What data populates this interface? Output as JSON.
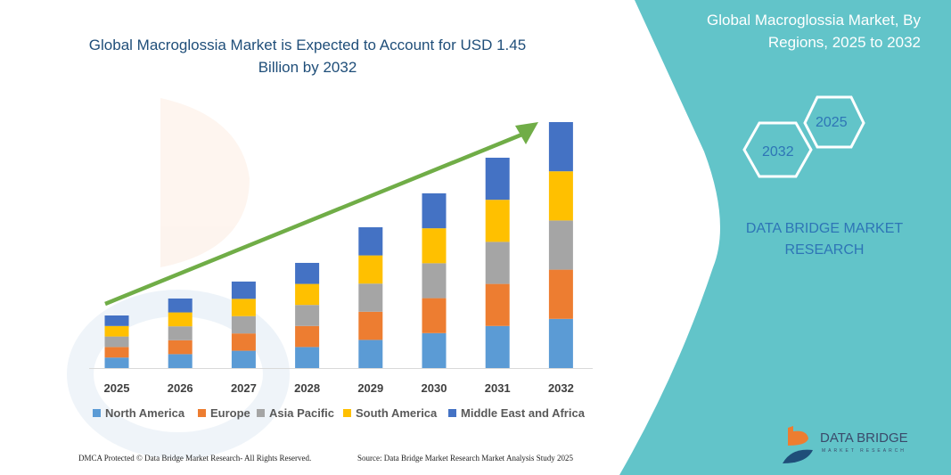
{
  "title": "Global Macroglossia Market is Expected to Account for USD 1.45 Billion by 2032",
  "side_title": "Global Macroglossia Market, By Regions, 2025 to 2032",
  "hex_labels": {
    "front": "2032",
    "back": "2025"
  },
  "brand_text": "DATA BRIDGE MARKET RESEARCH",
  "logo": {
    "name": "DATA BRIDGE",
    "sub": "MARKET RESEARCH"
  },
  "footer": {
    "left": "DMCA Protected © Data Bridge Market Research- All Rights Reserved.",
    "right": "Source: Data Bridge Market Research Market Analysis Study 2025"
  },
  "colors": {
    "panel": "#62c4c9",
    "arrow": "#70ad47"
  },
  "chart_data": {
    "type": "bar",
    "stacked": true,
    "categories": [
      "2025",
      "2026",
      "2027",
      "2028",
      "2029",
      "2030",
      "2031",
      "2032"
    ],
    "ylim": [
      0,
      1.45
    ],
    "grid": false,
    "legend_placement": "bottom",
    "series": [
      {
        "name": "North America",
        "color": "#5b9bd5",
        "values": [
          0.062,
          0.082,
          0.102,
          0.124,
          0.166,
          0.206,
          0.248,
          0.29
        ]
      },
      {
        "name": "Europe",
        "color": "#ed7d31",
        "values": [
          0.062,
          0.082,
          0.102,
          0.124,
          0.166,
          0.206,
          0.248,
          0.29
        ]
      },
      {
        "name": "Asia Pacific",
        "color": "#a5a5a5",
        "values": [
          0.062,
          0.082,
          0.102,
          0.124,
          0.166,
          0.206,
          0.248,
          0.29
        ]
      },
      {
        "name": "South America",
        "color": "#ffc000",
        "values": [
          0.062,
          0.082,
          0.102,
          0.124,
          0.166,
          0.206,
          0.248,
          0.29
        ]
      },
      {
        "name": "Middle East and Africa",
        "color": "#4472c4",
        "values": [
          0.062,
          0.082,
          0.102,
          0.124,
          0.166,
          0.206,
          0.248,
          0.29
        ]
      }
    ]
  }
}
